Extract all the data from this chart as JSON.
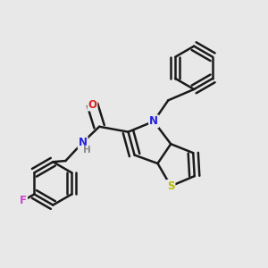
{
  "background_color": "#e8e8e8",
  "bond_color": "#1a1a1a",
  "atom_colors": {
    "N": "#2222dd",
    "O": "#dd2222",
    "S": "#bbbb00",
    "F": "#cc44cc",
    "NH_color": "#2222dd",
    "H_color": "#888888"
  },
  "bond_width": 1.8,
  "figsize": [
    3.0,
    3.0
  ],
  "dpi": 100
}
